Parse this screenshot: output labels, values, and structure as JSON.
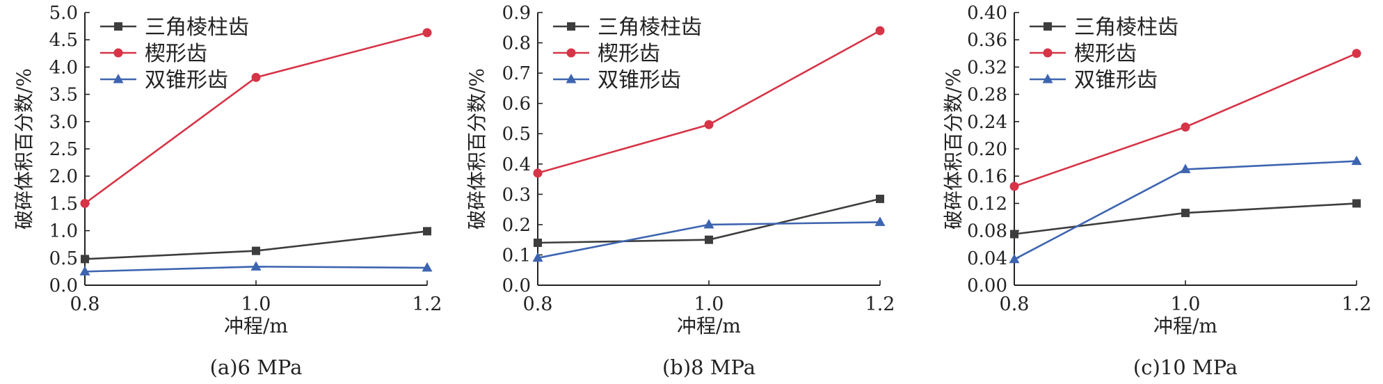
{
  "chart_data": [
    {
      "type": "line",
      "caption": "(a)6 MPa",
      "xlabel": "冲程/m",
      "ylabel": "破碎体积百分数/%",
      "x": [
        0.8,
        1.0,
        1.2
      ],
      "xticks": [
        "0.8",
        "1.0",
        "1.2"
      ],
      "ylim": [
        0,
        5
      ],
      "yticks": [
        "0.0",
        "0.5",
        "1.0",
        "1.5",
        "2.0",
        "2.5",
        "3.0",
        "3.5",
        "4.0",
        "4.5",
        "5.0"
      ],
      "legend_position": "top-left",
      "series": [
        {
          "name": "三角棱柱齿",
          "color": "#3d3d3d",
          "marker": "square",
          "values": [
            0.48,
            0.63,
            0.99
          ]
        },
        {
          "name": "楔形齿",
          "color": "#d63447",
          "marker": "circle",
          "values": [
            1.5,
            3.81,
            4.63
          ]
        },
        {
          "name": "双锥形齿",
          "color": "#3d64b0",
          "marker": "triangle",
          "values": [
            0.25,
            0.34,
            0.32
          ]
        }
      ]
    },
    {
      "type": "line",
      "caption": "(b)8 MPa",
      "xlabel": "冲程/m",
      "ylabel": "破碎体积百分数/%",
      "x": [
        0.8,
        1.0,
        1.2
      ],
      "xticks": [
        "0.8",
        "1.0",
        "1.2"
      ],
      "ylim": [
        0,
        0.9
      ],
      "yticks": [
        "0.0",
        "0.1",
        "0.2",
        "0.3",
        "0.4",
        "0.5",
        "0.6",
        "0.7",
        "0.8",
        "0.9"
      ],
      "legend_position": "top-left",
      "series": [
        {
          "name": "三角棱柱齿",
          "color": "#3d3d3d",
          "marker": "square",
          "values": [
            0.14,
            0.15,
            0.285
          ]
        },
        {
          "name": "楔形齿",
          "color": "#d63447",
          "marker": "circle",
          "values": [
            0.37,
            0.53,
            0.84
          ]
        },
        {
          "name": "双锥形齿",
          "color": "#3d64b0",
          "marker": "triangle",
          "values": [
            0.09,
            0.2,
            0.208
          ]
        }
      ]
    },
    {
      "type": "line",
      "caption": "(c)10 MPa",
      "xlabel": "冲程/m",
      "ylabel": "破碎体积百分数/%",
      "x": [
        0.8,
        1.0,
        1.2
      ],
      "xticks": [
        "0.8",
        "1.0",
        "1.2"
      ],
      "ylim": [
        0,
        0.4
      ],
      "yticks": [
        "0.00",
        "0.04",
        "0.08",
        "0.12",
        "0.16",
        "0.20",
        "0.24",
        "0.28",
        "0.32",
        "0.36",
        "0.40"
      ],
      "legend_position": "top-left",
      "series": [
        {
          "name": "三角棱柱齿",
          "color": "#3d3d3d",
          "marker": "square",
          "values": [
            0.075,
            0.106,
            0.12
          ]
        },
        {
          "name": "楔形齿",
          "color": "#d63447",
          "marker": "circle",
          "values": [
            0.145,
            0.232,
            0.34
          ]
        },
        {
          "name": "双锥形齿",
          "color": "#3d64b0",
          "marker": "triangle",
          "values": [
            0.038,
            0.17,
            0.182
          ]
        }
      ]
    }
  ]
}
